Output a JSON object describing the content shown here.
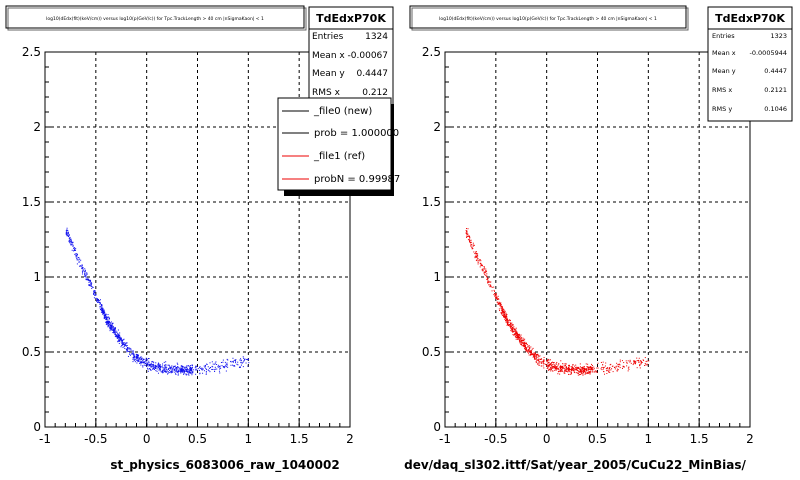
{
  "footer_text": "",
  "chart_data": [
    {
      "type": "scatter",
      "title": "log10(dEdx(fit)(keV/cm)) versus log10(p(GeV/c)) for Tpc.TrackLength > 40 cm |nSigmaKaon| < 1",
      "xlabel": "st_physics_6083006_raw_1040002",
      "ylabel": "",
      "xlim": [
        -1,
        2
      ],
      "ylim": [
        0,
        2.5
      ],
      "x_ticks": [
        "-1",
        "-0.5",
        "0",
        "0.5",
        "1",
        "1.5",
        "2"
      ],
      "y_ticks": [
        "0",
        "0.5",
        "1",
        "1.5",
        "2",
        "2.5"
      ],
      "grid": true,
      "point_color": "#1010ee",
      "stats": {
        "name": "TdEdxP70K",
        "rows": [
          {
            "label": "Entries",
            "value": "1324"
          },
          {
            "label": "Mean x",
            "value": "-0.00067"
          },
          {
            "label": "Mean y",
            "value": "0.4447"
          },
          {
            "label": "RMS x",
            "value": "0.212"
          }
        ]
      },
      "legend": {
        "placement": "top-right",
        "entries": [
          {
            "label": "_file0 (new)",
            "color": "#000000"
          },
          {
            "label": "prob = 1.000000",
            "color": "#000000"
          },
          {
            "label": "_file1 (ref)",
            "color": "#ee0000"
          },
          {
            "label": "probN = 0.99987",
            "color": "#ee0000"
          }
        ]
      },
      "band": {
        "x": [
          -0.85,
          -0.7,
          -0.55,
          -0.4,
          -0.3,
          -0.2,
          -0.1,
          0.0,
          0.1,
          0.2,
          0.3,
          0.4,
          0.5,
          0.65,
          0.8,
          0.95
        ],
        "y": [
          1.4,
          1.15,
          0.95,
          0.72,
          0.62,
          0.53,
          0.46,
          0.42,
          0.4,
          0.39,
          0.385,
          0.385,
          0.39,
          0.4,
          0.42,
          0.44
        ]
      }
    },
    {
      "type": "scatter",
      "title": "log10(dEdx(fit)(keV/cm)) versus log10(p(GeV/c)) for Tpc.TrackLength > 40 cm |nSigmaKaon| < 1",
      "xlabel": "dev/daq_sl302.ittf/Sat/year_2005/CuCu22_MinBias/",
      "ylabel": "",
      "xlim": [
        -1,
        2
      ],
      "ylim": [
        0,
        2.5
      ],
      "x_ticks": [
        "-1",
        "-0.5",
        "0",
        "0.5",
        "1",
        "1.5",
        "2"
      ],
      "y_ticks": [
        "0",
        "0.5",
        "1",
        "1.5",
        "2",
        "2.5"
      ],
      "grid": true,
      "point_color": "#ee0000",
      "stats": {
        "name": "TdEdxP70K",
        "rows": [
          {
            "label": "Entries",
            "value": "1323"
          },
          {
            "label": "Mean x",
            "value": "-0.0005944"
          },
          {
            "label": "Mean y",
            "value": "0.4447"
          },
          {
            "label": "RMS x",
            "value": "0.2121"
          },
          {
            "label": "RMS y",
            "value": "0.1046"
          }
        ]
      },
      "band": {
        "x": [
          -0.85,
          -0.7,
          -0.55,
          -0.4,
          -0.3,
          -0.2,
          -0.1,
          0.0,
          0.1,
          0.2,
          0.3,
          0.4,
          0.5,
          0.65,
          0.8,
          0.95
        ],
        "y": [
          1.4,
          1.15,
          0.95,
          0.72,
          0.62,
          0.53,
          0.46,
          0.42,
          0.4,
          0.39,
          0.385,
          0.385,
          0.39,
          0.4,
          0.42,
          0.44
        ]
      }
    }
  ]
}
